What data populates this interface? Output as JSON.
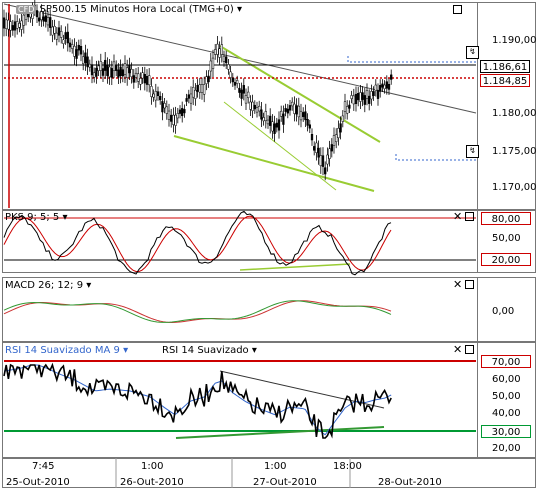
{
  "main": {
    "logo": "CFD",
    "title": "SP500.15 Minutos Hora Local (TMG+0)",
    "ticks": [
      "1.190,00",
      "1.180,00",
      "1.175,00",
      "1.170,00"
    ],
    "price_tag_upper": "1.186,61",
    "price_tag_current": "1.184,85"
  },
  "stoch": {
    "label": "PKS 9; 5; 5",
    "ticks": [
      "50,00"
    ],
    "level_high": "80,00",
    "level_low": "20,00"
  },
  "macd": {
    "label": "MACD 26; 12; 9",
    "ticks": [
      "0,00"
    ]
  },
  "rsi": {
    "label1": "RSI 14 Suavizado MA 9",
    "label2": "RSI 14 Suavizado",
    "ticks": [
      "60,00",
      "50,00",
      "40,00",
      "20,00"
    ],
    "level_high": "70,00",
    "level_low": "30,00"
  },
  "time_axis": {
    "times": [
      "7:45",
      "1:00",
      "1:00",
      "18:00"
    ],
    "dates": [
      "25-Out-2010",
      "26-Out-2010",
      "27-Out-2010",
      "28-Out-2010"
    ]
  },
  "colors": {
    "price_line": "#cc0000",
    "trend_green": "#99cc33",
    "macd_green": "#339933",
    "rsi_blue": "#3366cc",
    "rsi_levels": "#cc0000",
    "rsi_low": "#009933"
  },
  "icons": {
    "dropdown": "dropdown-arrow",
    "maximize": "maximize-box",
    "close": "close-x"
  }
}
